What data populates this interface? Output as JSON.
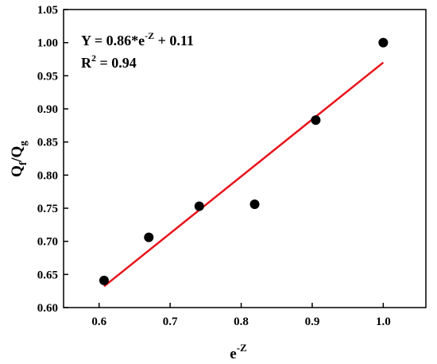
{
  "chart_data": {
    "type": "scatter",
    "x": [
      0.607,
      0.67,
      0.741,
      0.819,
      0.905,
      1.0
    ],
    "y": [
      0.641,
      0.706,
      0.753,
      0.756,
      0.883,
      1.0
    ],
    "fit_line": {
      "x": [
        0.607,
        1.0
      ],
      "y": [
        0.632,
        0.97
      ],
      "color": "#e8131b"
    },
    "marker_color": "#000000",
    "xlim": [
      0.55,
      1.06
    ],
    "ylim": [
      0.6,
      1.05
    ],
    "xticks": [
      "0.6",
      "0.7",
      "0.8",
      "0.9",
      "1.0"
    ],
    "xtick_values": [
      0.6,
      0.7,
      0.8,
      0.9,
      1.0
    ],
    "yticks": [
      "0.60",
      "0.65",
      "0.70",
      "0.75",
      "0.80",
      "0.85",
      "0.90",
      "0.95",
      "1.00",
      "1.05"
    ],
    "ytick_values": [
      0.6,
      0.65,
      0.7,
      0.75,
      0.8,
      0.85,
      0.9,
      0.95,
      1.0,
      1.05
    ],
    "xlabel": {
      "base": "e",
      "sup": "-Z"
    },
    "ylabel": {
      "num": "Q",
      "num_sub": "f",
      "slash": "/",
      "den": "Q",
      "den_sub": "g"
    },
    "annotation": {
      "eq_part1": "Y = 0.86*e",
      "eq_sup": "-Z",
      "eq_part2": " + 0.11",
      "r2_base": "R",
      "r2_sup": "2",
      "r2_rest": " = 0.94"
    },
    "legend": "none",
    "grid": false
  }
}
